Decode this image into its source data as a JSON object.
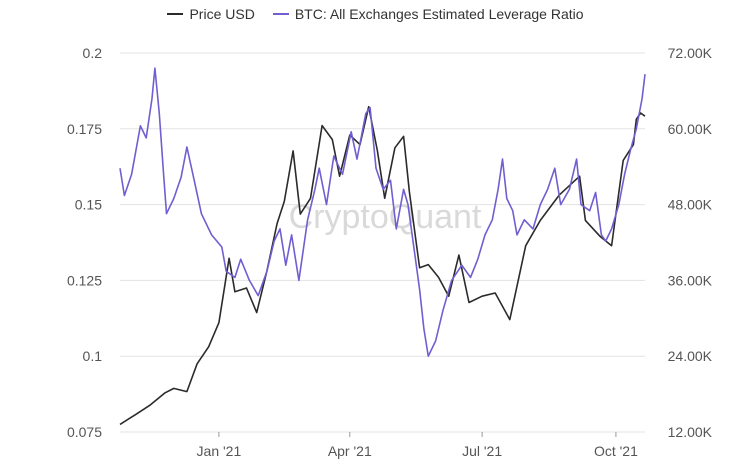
{
  "colors": {
    "price": "#2b2b2b",
    "leverage": "#6f5fd0",
    "grid": "#e3e3e3",
    "tick_text": "#555555",
    "watermark": "#d9d9d9"
  },
  "watermark": "CryptoQuant",
  "chart_data": {
    "type": "line",
    "legend_position": "top-center",
    "grid": true,
    "legend": [
      "Price USD",
      "BTC: All Exchanges Estimated Leverage Ratio"
    ],
    "x_range": [
      "2020-10-25",
      "2021-10-21"
    ],
    "x_ticks": [
      {
        "date": "2021-01-01",
        "label": "Jan '21"
      },
      {
        "date": "2021-04-01",
        "label": "Apr '21"
      },
      {
        "date": "2021-07-01",
        "label": "Jul '21"
      },
      {
        "date": "2021-10-01",
        "label": "Oct '21"
      }
    ],
    "left_axis": {
      "range": [
        0.075,
        0.2
      ],
      "ticks": [
        "0.2",
        "0.175",
        "0.15",
        "0.125",
        "0.1",
        "0.075"
      ],
      "tick_values": [
        0.2,
        0.175,
        0.15,
        0.125,
        0.1,
        0.075
      ]
    },
    "right_axis": {
      "range": [
        12000,
        72000
      ],
      "ticks": [
        "72.00K",
        "60.00K",
        "48.00K",
        "36.00K",
        "24.00K",
        "12.00K"
      ],
      "tick_values": [
        72000,
        60000,
        48000,
        36000,
        24000,
        12000
      ]
    },
    "series": [
      {
        "name": "Price USD",
        "axis": "right",
        "color": "#2b2b2b",
        "points": [
          [
            "2020-10-25",
            13200
          ],
          [
            "2020-11-05",
            14800
          ],
          [
            "2020-11-15",
            16300
          ],
          [
            "2020-11-25",
            18200
          ],
          [
            "2020-12-01",
            18900
          ],
          [
            "2020-12-10",
            18400
          ],
          [
            "2020-12-17",
            22800
          ],
          [
            "2020-12-25",
            25500
          ],
          [
            "2021-01-01",
            29300
          ],
          [
            "2021-01-08",
            39500
          ],
          [
            "2021-01-12",
            34200
          ],
          [
            "2021-01-20",
            34800
          ],
          [
            "2021-01-27",
            30900
          ],
          [
            "2021-02-03",
            37500
          ],
          [
            "2021-02-10",
            45000
          ],
          [
            "2021-02-15",
            48500
          ],
          [
            "2021-02-21",
            56500
          ],
          [
            "2021-02-26",
            46500
          ],
          [
            "2021-03-05",
            49000
          ],
          [
            "2021-03-13",
            60500
          ],
          [
            "2021-03-20",
            58300
          ],
          [
            "2021-03-25",
            52500
          ],
          [
            "2021-04-01",
            59000
          ],
          [
            "2021-04-08",
            57500
          ],
          [
            "2021-04-14",
            63500
          ],
          [
            "2021-04-20",
            56500
          ],
          [
            "2021-04-25",
            49000
          ],
          [
            "2021-05-02",
            57000
          ],
          [
            "2021-05-08",
            58800
          ],
          [
            "2021-05-12",
            50000
          ],
          [
            "2021-05-19",
            38000
          ],
          [
            "2021-05-25",
            38500
          ],
          [
            "2021-06-01",
            36500
          ],
          [
            "2021-06-08",
            33500
          ],
          [
            "2021-06-15",
            40000
          ],
          [
            "2021-06-22",
            32500
          ],
          [
            "2021-07-01",
            33500
          ],
          [
            "2021-07-10",
            34000
          ],
          [
            "2021-07-20",
            29800
          ],
          [
            "2021-07-31",
            41500
          ],
          [
            "2021-08-10",
            45500
          ],
          [
            "2021-08-23",
            49500
          ],
          [
            "2021-09-06",
            52500
          ],
          [
            "2021-09-10",
            45500
          ],
          [
            "2021-09-20",
            43000
          ],
          [
            "2021-09-28",
            41500
          ],
          [
            "2021-10-06",
            55000
          ],
          [
            "2021-10-13",
            57500
          ],
          [
            "2021-10-15",
            61500
          ],
          [
            "2021-10-18",
            62500
          ],
          [
            "2021-10-21",
            62000
          ]
        ]
      },
      {
        "name": "BTC: All Exchanges Estimated Leverage Ratio",
        "axis": "left",
        "color": "#6f5fd0",
        "points": [
          [
            "2020-10-25",
            0.162
          ],
          [
            "2020-10-28",
            0.153
          ],
          [
            "2020-11-02",
            0.16
          ],
          [
            "2020-11-08",
            0.176
          ],
          [
            "2020-11-12",
            0.172
          ],
          [
            "2020-11-16",
            0.185
          ],
          [
            "2020-11-18",
            0.195
          ],
          [
            "2020-11-21",
            0.18
          ],
          [
            "2020-11-24",
            0.16
          ],
          [
            "2020-11-26",
            0.147
          ],
          [
            "2020-12-01",
            0.152
          ],
          [
            "2020-12-06",
            0.159
          ],
          [
            "2020-12-10",
            0.169
          ],
          [
            "2020-12-15",
            0.158
          ],
          [
            "2020-12-20",
            0.147
          ],
          [
            "2020-12-27",
            0.14
          ],
          [
            "2021-01-03",
            0.136
          ],
          [
            "2021-01-06",
            0.128
          ],
          [
            "2021-01-12",
            0.126
          ],
          [
            "2021-01-16",
            0.132
          ],
          [
            "2021-01-22",
            0.125
          ],
          [
            "2021-01-28",
            0.12
          ],
          [
            "2021-02-03",
            0.128
          ],
          [
            "2021-02-08",
            0.138
          ],
          [
            "2021-02-12",
            0.142
          ],
          [
            "2021-02-16",
            0.13
          ],
          [
            "2021-02-20",
            0.14
          ],
          [
            "2021-02-25",
            0.125
          ],
          [
            "2021-03-03",
            0.145
          ],
          [
            "2021-03-08",
            0.155
          ],
          [
            "2021-03-11",
            0.162
          ],
          [
            "2021-03-16",
            0.15
          ],
          [
            "2021-03-21",
            0.166
          ],
          [
            "2021-03-27",
            0.16
          ],
          [
            "2021-04-02",
            0.174
          ],
          [
            "2021-04-06",
            0.165
          ],
          [
            "2021-04-12",
            0.18
          ],
          [
            "2021-04-15",
            0.182
          ],
          [
            "2021-04-19",
            0.162
          ],
          [
            "2021-04-24",
            0.155
          ],
          [
            "2021-04-29",
            0.158
          ],
          [
            "2021-05-03",
            0.142
          ],
          [
            "2021-05-08",
            0.155
          ],
          [
            "2021-05-11",
            0.15
          ],
          [
            "2021-05-15",
            0.136
          ],
          [
            "2021-05-19",
            0.122
          ],
          [
            "2021-05-22",
            0.109
          ],
          [
            "2021-05-25",
            0.1
          ],
          [
            "2021-05-30",
            0.105
          ],
          [
            "2021-06-04",
            0.115
          ],
          [
            "2021-06-10",
            0.125
          ],
          [
            "2021-06-17",
            0.13
          ],
          [
            "2021-06-23",
            0.126
          ],
          [
            "2021-06-28",
            0.132
          ],
          [
            "2021-07-03",
            0.14
          ],
          [
            "2021-07-08",
            0.145
          ],
          [
            "2021-07-12",
            0.155
          ],
          [
            "2021-07-15",
            0.165
          ],
          [
            "2021-07-18",
            0.152
          ],
          [
            "2021-07-22",
            0.148
          ],
          [
            "2021-07-25",
            0.14
          ],
          [
            "2021-07-30",
            0.145
          ],
          [
            "2021-08-05",
            0.142
          ],
          [
            "2021-08-10",
            0.15
          ],
          [
            "2021-08-15",
            0.155
          ],
          [
            "2021-08-20",
            0.162
          ],
          [
            "2021-08-24",
            0.15
          ],
          [
            "2021-08-30",
            0.155
          ],
          [
            "2021-09-04",
            0.165
          ],
          [
            "2021-09-07",
            0.15
          ],
          [
            "2021-09-13",
            0.148
          ],
          [
            "2021-09-17",
            0.154
          ],
          [
            "2021-09-21",
            0.14
          ],
          [
            "2021-09-24",
            0.138
          ],
          [
            "2021-09-28",
            0.142
          ],
          [
            "2021-10-03",
            0.15
          ],
          [
            "2021-10-07",
            0.16
          ],
          [
            "2021-10-11",
            0.168
          ],
          [
            "2021-10-15",
            0.175
          ],
          [
            "2021-10-19",
            0.185
          ],
          [
            "2021-10-21",
            0.193
          ]
        ]
      }
    ]
  }
}
